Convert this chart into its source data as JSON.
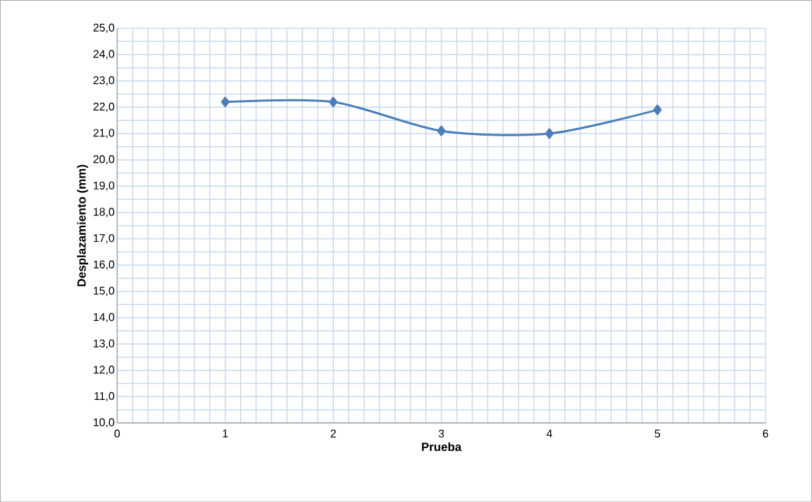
{
  "chart_data": {
    "type": "line",
    "xlabel": "Prueba",
    "ylabel": "Desplazamiento (mm)",
    "x": [
      1,
      2,
      3,
      4,
      5
    ],
    "values": [
      22.2,
      22.2,
      21.1,
      21.0,
      21.9
    ],
    "color": "#4a7ebb",
    "marker": "diamond",
    "line_style": "solid",
    "grid": true,
    "xlim": [
      0,
      6
    ],
    "xticks": [
      0,
      1,
      2,
      3,
      4,
      5,
      6
    ],
    "ylim": [
      10,
      25
    ],
    "yticks": [
      {
        "value": 10,
        "label": "10,0"
      },
      {
        "value": 11,
        "label": "11,0"
      },
      {
        "value": 12,
        "label": "12,0"
      },
      {
        "value": 13,
        "label": "13,0"
      },
      {
        "value": 14,
        "label": "14,0"
      },
      {
        "value": 15,
        "label": "15,0"
      },
      {
        "value": 16,
        "label": "16,0"
      },
      {
        "value": 17,
        "label": "17,0"
      },
      {
        "value": 18,
        "label": "18,0"
      },
      {
        "value": 19,
        "label": "19,0"
      },
      {
        "value": 20,
        "label": "20,0"
      },
      {
        "value": 21,
        "label": "21,0"
      },
      {
        "value": 22,
        "label": "22,0"
      },
      {
        "value": 23,
        "label": "23,0"
      },
      {
        "value": 24,
        "label": "24,0"
      },
      {
        "value": 25,
        "label": "25,0"
      }
    ]
  }
}
